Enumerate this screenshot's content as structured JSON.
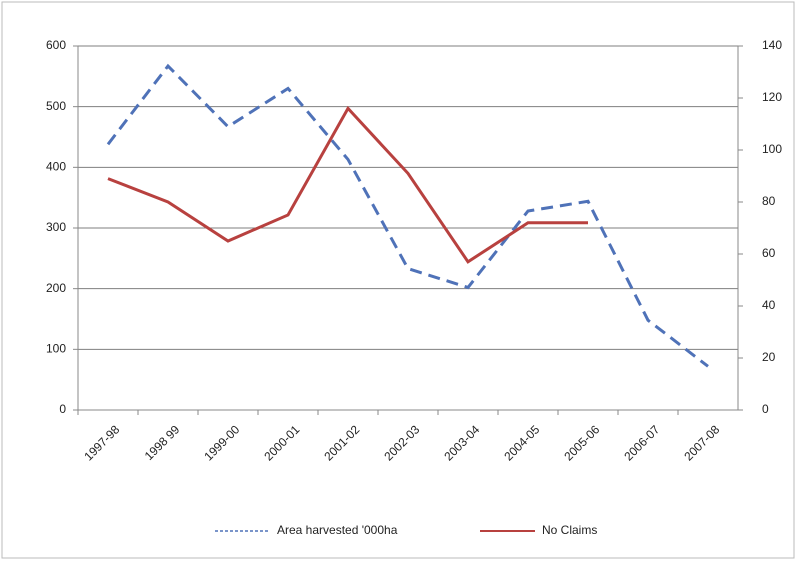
{
  "chart_data": {
    "type": "line",
    "categories": [
      "1997-98",
      "1998 99",
      "1999-00",
      "2000-01",
      "2001-02",
      "2002-03",
      "2003-04",
      "2004-05",
      "2005-06",
      "2006-07",
      "2007-08"
    ],
    "series": [
      {
        "name": "Area harvested '000ha",
        "color": "#4f72b8",
        "dashed": true,
        "values": [
          438,
          567,
          467,
          530,
          413,
          233,
          202,
          328,
          344,
          148,
          72
        ]
      },
      {
        "name": "No Claims",
        "color": "#b8413f",
        "axis": "y2",
        "values": [
          89,
          80,
          65,
          75,
          116,
          91,
          57,
          72,
          72,
          null,
          null
        ]
      }
    ],
    "ylim": [
      0,
      600
    ],
    "yticks": [
      0,
      100,
      200,
      300,
      400,
      500,
      600
    ],
    "y2lim": [
      0,
      140
    ],
    "y2ticks": [
      0,
      20,
      40,
      60,
      80,
      100,
      120,
      140
    ],
    "grid": true,
    "legend": "bottom"
  }
}
